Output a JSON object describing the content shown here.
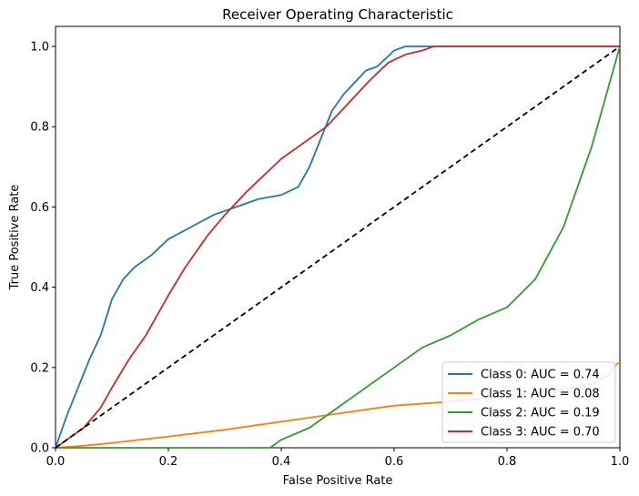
{
  "chart_data": {
    "type": "line",
    "title": "Receiver Operating Characteristic",
    "xlabel": "False Positive Rate",
    "ylabel": "True Positive Rate",
    "xlim": [
      0.0,
      1.0
    ],
    "ylim": [
      0.0,
      1.05
    ],
    "xticks": [
      "0.0",
      "0.2",
      "0.4",
      "0.6",
      "0.8",
      "1.0"
    ],
    "xtick_values": [
      0.0,
      0.2,
      0.4,
      0.6,
      0.8,
      1.0
    ],
    "yticks": [
      "0.0",
      "0.2",
      "0.4",
      "0.6",
      "0.8",
      "1.0"
    ],
    "ytick_values": [
      0.0,
      0.2,
      0.4,
      0.6,
      0.8,
      1.0
    ],
    "grid": false,
    "legend_position": "lower-right",
    "diagonal": {
      "x": [
        0,
        1
      ],
      "y": [
        0,
        1
      ],
      "color": "#000000",
      "style": "dashed"
    },
    "series": [
      {
        "name": "Class 0: AUC = 0.74",
        "color": "#1f77b4",
        "x": [
          0,
          0.005,
          0.02,
          0.04,
          0.06,
          0.08,
          0.1,
          0.12,
          0.14,
          0.17,
          0.2,
          0.24,
          0.28,
          0.32,
          0.36,
          0.4,
          0.43,
          0.45,
          0.47,
          0.49,
          0.51,
          0.53,
          0.55,
          0.57,
          0.6,
          0.62,
          0.65,
          0.7,
          1.0
        ],
        "y": [
          0,
          0.02,
          0.08,
          0.15,
          0.22,
          0.28,
          0.37,
          0.42,
          0.45,
          0.48,
          0.52,
          0.55,
          0.58,
          0.6,
          0.62,
          0.63,
          0.65,
          0.7,
          0.77,
          0.84,
          0.88,
          0.91,
          0.94,
          0.95,
          0.99,
          1.0,
          1.0,
          1.0,
          1.0
        ]
      },
      {
        "name": "Class 1: AUC = 0.08",
        "color": "#ff7f0e",
        "x": [
          0,
          0.05,
          0.1,
          0.2,
          0.3,
          0.4,
          0.5,
          0.6,
          0.7,
          0.8,
          0.9,
          0.95,
          0.98,
          0.995,
          1.0
        ],
        "y": [
          0,
          0.005,
          0.012,
          0.028,
          0.045,
          0.065,
          0.085,
          0.105,
          0.115,
          0.13,
          0.145,
          0.16,
          0.18,
          0.21,
          0.21
        ]
      },
      {
        "name": "Class 2: AUC = 0.19",
        "color": "#2ca02c",
        "x": [
          0,
          0.3,
          0.38,
          0.4,
          0.45,
          0.5,
          0.55,
          0.6,
          0.65,
          0.7,
          0.75,
          0.8,
          0.85,
          0.9,
          0.95,
          0.98,
          1.0
        ],
        "y": [
          0,
          0,
          0.0,
          0.02,
          0.05,
          0.1,
          0.15,
          0.2,
          0.25,
          0.28,
          0.32,
          0.35,
          0.42,
          0.55,
          0.75,
          0.9,
          1.0
        ]
      },
      {
        "name": "Class 3: AUC = 0.70",
        "color": "#d62728",
        "x": [
          0,
          0.02,
          0.05,
          0.08,
          0.1,
          0.13,
          0.16,
          0.2,
          0.23,
          0.27,
          0.3,
          0.34,
          0.37,
          0.4,
          0.44,
          0.48,
          0.52,
          0.56,
          0.59,
          0.62,
          0.65,
          0.67,
          0.7,
          1.0
        ],
        "y": [
          0,
          0.02,
          0.05,
          0.1,
          0.15,
          0.22,
          0.28,
          0.38,
          0.45,
          0.53,
          0.58,
          0.64,
          0.68,
          0.72,
          0.76,
          0.8,
          0.86,
          0.92,
          0.96,
          0.98,
          0.99,
          1.0,
          1.0,
          1.0
        ]
      }
    ]
  }
}
